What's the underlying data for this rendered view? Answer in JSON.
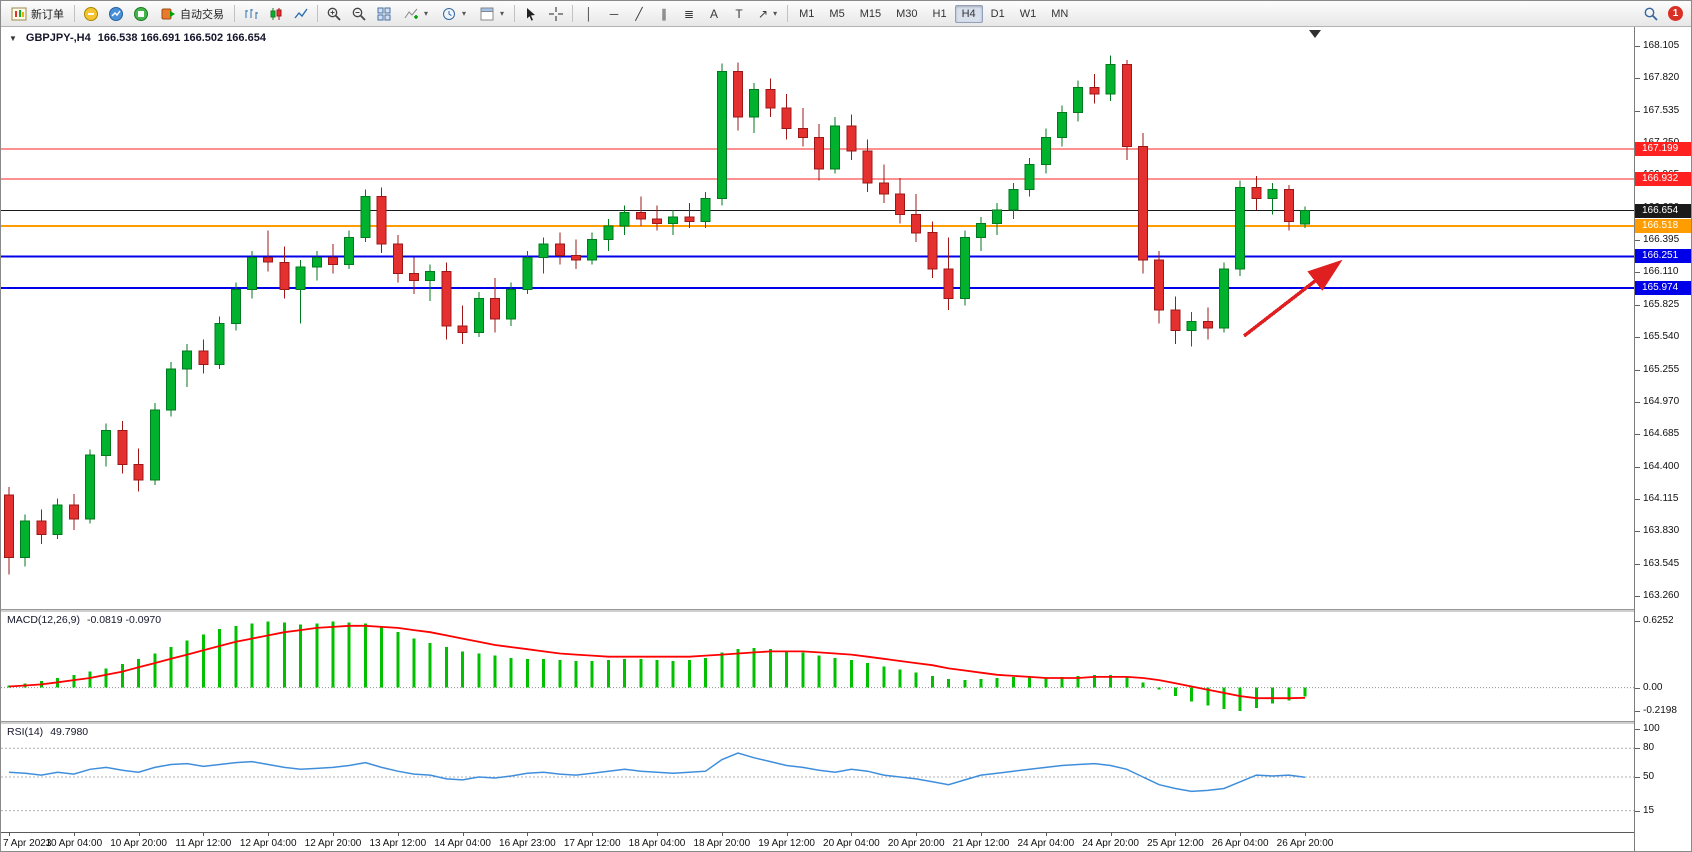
{
  "toolbar": {
    "new_order_label": "新订单",
    "autotrading_label": "自动交易",
    "timeframes": [
      "M1",
      "M5",
      "M15",
      "M30",
      "H1",
      "H4",
      "D1",
      "W1",
      "MN"
    ],
    "active_timeframe": "H4",
    "notification_count": "1",
    "icons": {
      "dropdown_caret": "▾",
      "vertical_line": "│",
      "horizontal_line": "─",
      "trendline": "╱",
      "channel": "∥",
      "fibonacci": "≣",
      "text": "A",
      "text_label": "T",
      "arrow_tool": "↗",
      "cursor": "↖",
      "crosshair": "+",
      "collapse_triangle": "▼"
    }
  },
  "chart": {
    "symbol": "GBPJPY-,H4",
    "ohlc_text": "166.538 166.691 166.502 166.654"
  },
  "chart_data": {
    "type": "candlestick",
    "symbol": "GBPJPY-",
    "timeframe": "H4",
    "ohlc_current": {
      "open": 166.538,
      "high": 166.691,
      "low": 166.502,
      "close": 166.654
    },
    "colors": {
      "bull": "#00b22d",
      "bull_edge": "#007a1e",
      "bear": "#e53030",
      "bear_edge": "#9c1818",
      "macd_bar": "#00c000",
      "macd_signal": "#ff0000",
      "rsi_line": "#3f8edc",
      "arrow": "#e02020"
    },
    "price_axis": {
      "min": 163.26,
      "max": 168.105,
      "ticks": [
        "168.105",
        "167.820",
        "167.535",
        "167.250",
        "166.965",
        "166.680",
        "166.395",
        "166.110",
        "165.825",
        "165.540",
        "165.255",
        "164.970",
        "164.685",
        "164.400",
        "164.115",
        "163.830",
        "163.545",
        "163.260"
      ]
    },
    "levels": [
      {
        "price": 167.199,
        "label": "167.199",
        "color": "#ff2020",
        "width": 1
      },
      {
        "price": 166.932,
        "label": "166.932",
        "color": "#ff2020",
        "width": 1
      },
      {
        "price": 166.654,
        "label": "166.654",
        "color": "#1a1a1a",
        "width": 1
      },
      {
        "price": 166.518,
        "label": "166.518",
        "color": "#ff9c00",
        "width": 2
      },
      {
        "price": 166.251,
        "label": "166.251",
        "color": "#0000e8",
        "width": 2
      },
      {
        "price": 165.974,
        "label": "165.974",
        "color": "#0000e8",
        "width": 2
      }
    ],
    "time_labels": [
      "7 Apr 2023",
      "10 Apr 04:00",
      "10 Apr 20:00",
      "11 Apr 12:00",
      "12 Apr 04:00",
      "12 Apr 20:00",
      "13 Apr 12:00",
      "14 Apr 04:00",
      "16 Apr 23:00",
      "17 Apr 12:00",
      "18 Apr 04:00",
      "18 Apr 20:00",
      "19 Apr 12:00",
      "20 Apr 04:00",
      "20 Apr 20:00",
      "21 Apr 12:00",
      "24 Apr 04:00",
      "24 Apr 20:00",
      "25 Apr 12:00",
      "26 Apr 04:00",
      "26 Apr 20:00"
    ],
    "candles": [
      [
        164.15,
        164.22,
        163.45,
        163.6
      ],
      [
        163.6,
        163.98,
        163.52,
        163.92
      ],
      [
        163.92,
        164.02,
        163.72,
        163.8
      ],
      [
        163.8,
        164.12,
        163.76,
        164.06
      ],
      [
        164.06,
        164.16,
        163.84,
        163.94
      ],
      [
        163.94,
        164.55,
        163.9,
        164.5
      ],
      [
        164.5,
        164.78,
        164.4,
        164.72
      ],
      [
        164.72,
        164.8,
        164.34,
        164.42
      ],
      [
        164.42,
        164.56,
        164.18,
        164.28
      ],
      [
        164.28,
        164.96,
        164.24,
        164.9
      ],
      [
        164.9,
        165.32,
        164.84,
        165.26
      ],
      [
        165.26,
        165.48,
        165.1,
        165.42
      ],
      [
        165.42,
        165.52,
        165.22,
        165.3
      ],
      [
        165.3,
        165.72,
        165.26,
        165.66
      ],
      [
        165.66,
        166.02,
        165.6,
        165.96
      ],
      [
        165.96,
        166.3,
        165.88,
        166.24
      ],
      [
        166.24,
        166.48,
        166.12,
        166.2
      ],
      [
        166.2,
        166.34,
        165.88,
        165.96
      ],
      [
        165.96,
        166.22,
        165.66,
        166.16
      ],
      [
        166.16,
        166.3,
        166.04,
        166.24
      ],
      [
        166.24,
        166.36,
        166.1,
        166.18
      ],
      [
        166.18,
        166.48,
        166.14,
        166.42
      ],
      [
        166.42,
        166.84,
        166.38,
        166.78
      ],
      [
        166.78,
        166.86,
        166.28,
        166.36
      ],
      [
        166.36,
        166.44,
        166.02,
        166.1
      ],
      [
        166.1,
        166.24,
        165.92,
        166.04
      ],
      [
        166.04,
        166.18,
        165.86,
        166.12
      ],
      [
        166.12,
        166.2,
        165.52,
        165.64
      ],
      [
        165.64,
        165.82,
        165.48,
        165.58
      ],
      [
        165.58,
        165.94,
        165.54,
        165.88
      ],
      [
        165.88,
        166.06,
        165.58,
        165.7
      ],
      [
        165.7,
        166.02,
        165.64,
        165.96
      ],
      [
        165.96,
        166.3,
        165.92,
        166.24
      ],
      [
        166.24,
        166.42,
        166.1,
        166.36
      ],
      [
        166.36,
        166.46,
        166.18,
        166.26
      ],
      [
        166.26,
        166.4,
        166.14,
        166.22
      ],
      [
        166.22,
        166.46,
        166.18,
        166.4
      ],
      [
        166.4,
        166.58,
        166.3,
        166.52
      ],
      [
        166.52,
        166.7,
        166.44,
        166.64
      ],
      [
        166.64,
        166.78,
        166.52,
        166.58
      ],
      [
        166.58,
        166.7,
        166.48,
        166.54
      ],
      [
        166.54,
        166.66,
        166.44,
        166.6
      ],
      [
        166.6,
        166.72,
        166.5,
        166.56
      ],
      [
        166.56,
        166.82,
        166.5,
        166.76
      ],
      [
        166.76,
        167.95,
        166.7,
        167.88
      ],
      [
        167.88,
        167.96,
        167.36,
        167.48
      ],
      [
        167.48,
        167.78,
        167.34,
        167.72
      ],
      [
        167.72,
        167.82,
        167.48,
        167.56
      ],
      [
        167.56,
        167.68,
        167.28,
        167.38
      ],
      [
        167.38,
        167.56,
        167.22,
        167.3
      ],
      [
        167.3,
        167.42,
        166.92,
        167.02
      ],
      [
        167.02,
        167.48,
        166.98,
        167.4
      ],
      [
        167.4,
        167.5,
        167.1,
        167.18
      ],
      [
        167.18,
        167.28,
        166.82,
        166.9
      ],
      [
        166.9,
        167.06,
        166.72,
        166.8
      ],
      [
        166.8,
        166.94,
        166.54,
        166.62
      ],
      [
        166.62,
        166.8,
        166.38,
        166.46
      ],
      [
        166.46,
        166.56,
        166.06,
        166.14
      ],
      [
        166.14,
        166.42,
        165.78,
        165.88
      ],
      [
        165.88,
        166.48,
        165.82,
        166.42
      ],
      [
        166.42,
        166.6,
        166.3,
        166.54
      ],
      [
        166.54,
        166.72,
        166.44,
        166.66
      ],
      [
        166.66,
        166.9,
        166.58,
        166.84
      ],
      [
        166.84,
        167.12,
        166.78,
        167.06
      ],
      [
        167.06,
        167.38,
        166.98,
        167.3
      ],
      [
        167.3,
        167.58,
        167.22,
        167.52
      ],
      [
        167.52,
        167.8,
        167.44,
        167.74
      ],
      [
        167.74,
        167.86,
        167.6,
        167.68
      ],
      [
        167.68,
        168.02,
        167.62,
        167.94
      ],
      [
        167.94,
        167.98,
        167.1,
        167.22
      ],
      [
        167.22,
        167.34,
        166.1,
        166.22
      ],
      [
        166.22,
        166.3,
        165.66,
        165.78
      ],
      [
        165.78,
        165.9,
        165.48,
        165.6
      ],
      [
        165.6,
        165.76,
        165.46,
        165.68
      ],
      [
        165.68,
        165.8,
        165.52,
        165.62
      ],
      [
        165.62,
        166.2,
        165.58,
        166.14
      ],
      [
        166.14,
        166.92,
        166.08,
        166.86
      ],
      [
        166.86,
        166.96,
        166.66,
        166.76
      ],
      [
        166.76,
        166.9,
        166.62,
        166.84
      ],
      [
        166.84,
        166.88,
        166.48,
        166.56
      ],
      [
        166.538,
        166.691,
        166.502,
        166.654
      ]
    ],
    "macd": {
      "label": "MACD(12,26,9)",
      "values": "-0.0819 -0.0970",
      "axis": [
        "0.6252",
        "0.00",
        "-0.2198"
      ],
      "histogram": [
        0.02,
        0.04,
        0.06,
        0.09,
        0.12,
        0.15,
        0.18,
        0.22,
        0.27,
        0.32,
        0.38,
        0.44,
        0.5,
        0.55,
        0.58,
        0.6,
        0.62,
        0.61,
        0.59,
        0.6,
        0.62,
        0.61,
        0.6,
        0.57,
        0.52,
        0.46,
        0.42,
        0.38,
        0.34,
        0.32,
        0.3,
        0.28,
        0.27,
        0.27,
        0.26,
        0.25,
        0.25,
        0.26,
        0.27,
        0.27,
        0.26,
        0.25,
        0.26,
        0.28,
        0.33,
        0.36,
        0.37,
        0.36,
        0.35,
        0.33,
        0.3,
        0.28,
        0.26,
        0.23,
        0.2,
        0.17,
        0.14,
        0.11,
        0.08,
        0.07,
        0.08,
        0.09,
        0.1,
        0.1,
        0.09,
        0.1,
        0.11,
        0.12,
        0.12,
        0.1,
        0.05,
        -0.02,
        -0.08,
        -0.13,
        -0.17,
        -0.2,
        -0.22,
        -0.19,
        -0.15,
        -0.12,
        -0.0819
      ],
      "signal": [
        0.01,
        0.02,
        0.03,
        0.05,
        0.07,
        0.09,
        0.12,
        0.15,
        0.19,
        0.23,
        0.27,
        0.31,
        0.35,
        0.39,
        0.43,
        0.46,
        0.49,
        0.52,
        0.54,
        0.56,
        0.57,
        0.58,
        0.58,
        0.57,
        0.56,
        0.54,
        0.52,
        0.49,
        0.46,
        0.43,
        0.4,
        0.38,
        0.36,
        0.34,
        0.32,
        0.31,
        0.3,
        0.29,
        0.29,
        0.29,
        0.29,
        0.29,
        0.29,
        0.3,
        0.31,
        0.32,
        0.33,
        0.34,
        0.34,
        0.34,
        0.33,
        0.32,
        0.31,
        0.29,
        0.27,
        0.25,
        0.23,
        0.21,
        0.18,
        0.16,
        0.14,
        0.12,
        0.11,
        0.1,
        0.09,
        0.09,
        0.09,
        0.1,
        0.1,
        0.1,
        0.09,
        0.07,
        0.04,
        0.01,
        -0.02,
        -0.05,
        -0.08,
        -0.1,
        -0.1,
        -0.1,
        -0.097
      ]
    },
    "rsi": {
      "label": "RSI(14)",
      "value": "49.7980",
      "axis": [
        "100",
        "80",
        "50",
        "15"
      ],
      "levels": [
        80,
        50,
        15
      ],
      "values": [
        55,
        54,
        52,
        55,
        53,
        58,
        60,
        57,
        55,
        60,
        63,
        64,
        61,
        63,
        65,
        66,
        63,
        60,
        58,
        59,
        60,
        62,
        65,
        60,
        56,
        53,
        52,
        48,
        47,
        50,
        49,
        51,
        54,
        55,
        53,
        52,
        54,
        56,
        58,
        56,
        55,
        54,
        55,
        56,
        68,
        75,
        70,
        66,
        62,
        60,
        57,
        55,
        58,
        56,
        52,
        50,
        48,
        45,
        42,
        47,
        52,
        54,
        56,
        58,
        60,
        62,
        63,
        64,
        62,
        58,
        50,
        42,
        38,
        35,
        36,
        38,
        45,
        52,
        51,
        52,
        49.798
      ]
    }
  }
}
